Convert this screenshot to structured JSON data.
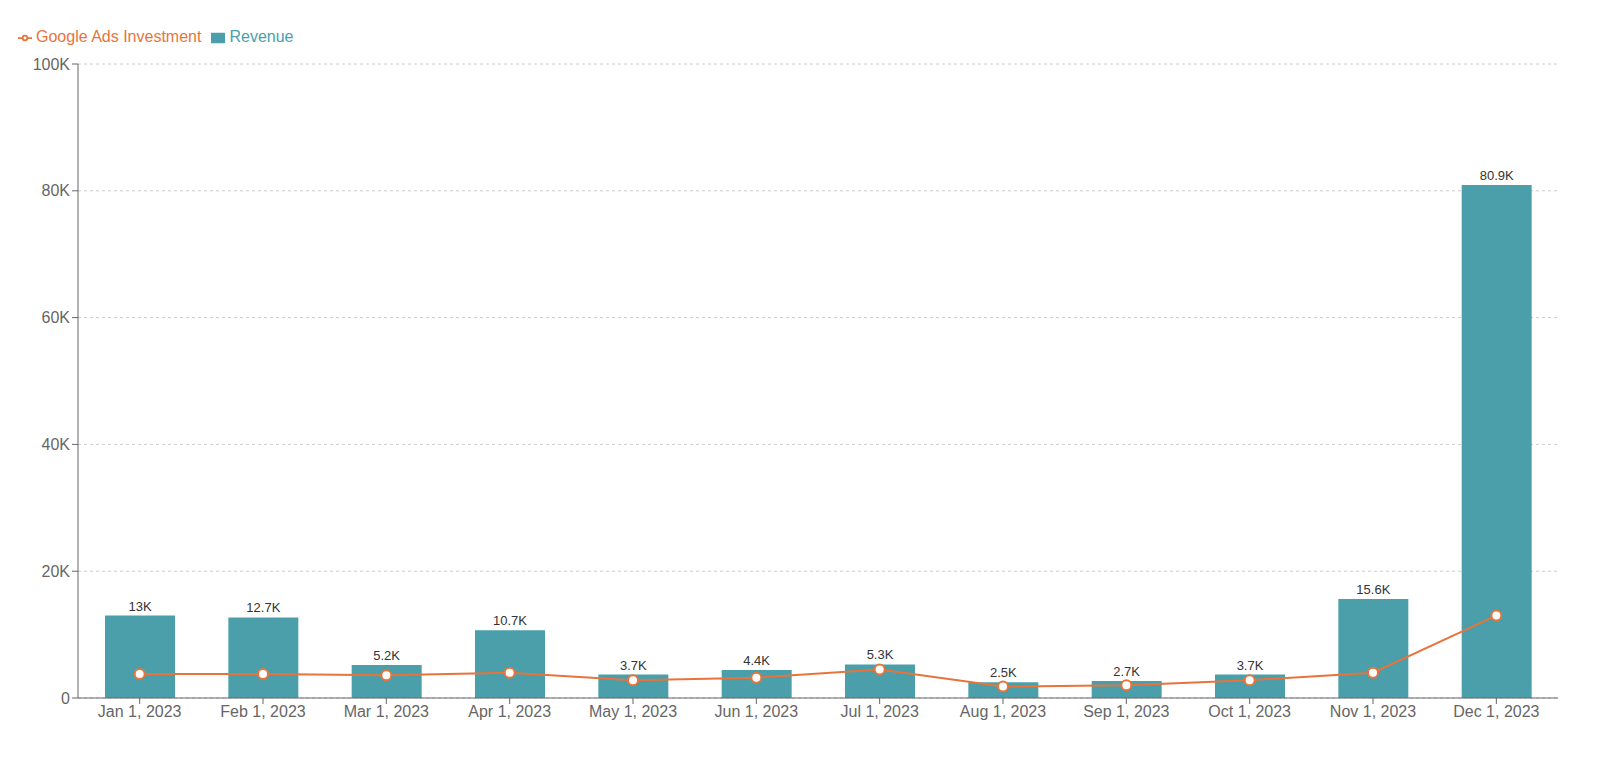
{
  "chart_data": {
    "type": "bar",
    "categories": [
      "Jan 1, 2023",
      "Feb 1, 2023",
      "Mar 1, 2023",
      "Apr 1, 2023",
      "May 1, 2023",
      "Jun 1, 2023",
      "Jul 1, 2023",
      "Aug 1, 2023",
      "Sep 1, 2023",
      "Oct 1, 2023",
      "Nov 1, 2023",
      "Dec 1, 2023"
    ],
    "series": [
      {
        "name": "Revenue",
        "type": "bar",
        "color": "#4a9faa",
        "values": [
          13000,
          12700,
          5200,
          10700,
          3700,
          4400,
          5300,
          2500,
          2700,
          3700,
          15600,
          80900
        ],
        "value_labels": [
          "13K",
          "12.7K",
          "5.2K",
          "10.7K",
          "3.7K",
          "4.4K",
          "5.3K",
          "2.5K",
          "2.7K",
          "3.7K",
          "15.6K",
          "80.9K"
        ],
        "data_labels": true
      },
      {
        "name": "Google Ads Investment",
        "type": "line",
        "color": "#e8743b",
        "marker": "circle",
        "values": [
          3800,
          3800,
          3600,
          4000,
          2800,
          3200,
          4500,
          1800,
          2000,
          2800,
          4000,
          13000
        ]
      }
    ],
    "ylim": [
      0,
      100000
    ],
    "yticks": [
      0,
      {
        "value": 20000,
        "label": "20K"
      },
      {
        "value": 40000,
        "label": "40K"
      },
      {
        "value": 60000,
        "label": "60K"
      },
      {
        "value": 80000,
        "label": "80K"
      },
      {
        "value": 100000,
        "label": "100K"
      }
    ],
    "grid": true,
    "legend": "upper left"
  }
}
